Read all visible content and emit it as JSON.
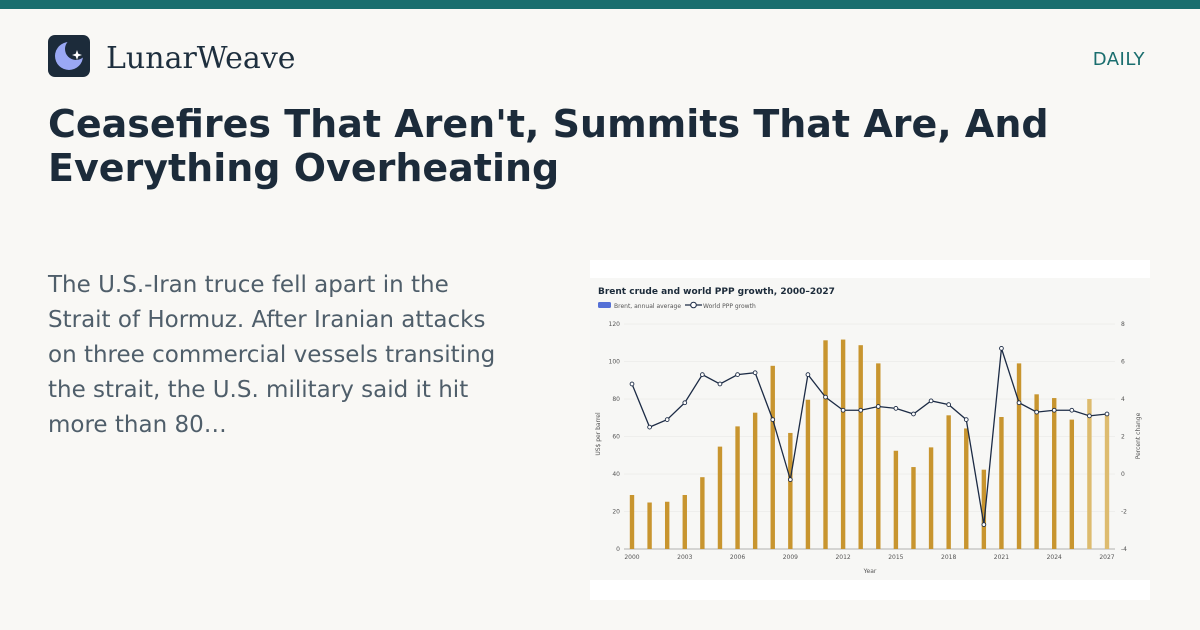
{
  "site": {
    "brand": "LunarWeave",
    "logo_icon": "crescent-moon-sparkle-icon",
    "section": "DAILY",
    "accent_color": "#1a6e6e"
  },
  "article": {
    "headline": "Ceasefires That Aren't, Summits That Are, And Everything Overheating",
    "excerpt": "The U.S.-Iran truce fell apart in the Strait of Hormuz. After Iranian attacks on three commercial vessels transiting the strait, the U.S. military said it hit more than 80…"
  },
  "chart_data": {
    "type": "bar",
    "title": "Brent crude and world PPP growth, 2000–2027",
    "xlabel": "Year",
    "ylabel": "US$ per barrel",
    "y2label": "Percent change",
    "ylim": [
      0,
      120
    ],
    "y2lim": [
      -4,
      8
    ],
    "yticks": [
      0,
      20,
      40,
      60,
      80,
      100,
      120
    ],
    "y2ticks": [
      -4,
      -2,
      0,
      2,
      4,
      6,
      8
    ],
    "xticks": [
      "2000",
      "2003",
      "2006",
      "2009",
      "2012",
      "2015",
      "2018",
      "2021",
      "2024",
      "2027"
    ],
    "grid": true,
    "legend_position": "top-left",
    "categories": [
      2000,
      2001,
      2002,
      2003,
      2004,
      2005,
      2006,
      2007,
      2008,
      2009,
      2010,
      2011,
      2012,
      2013,
      2014,
      2015,
      2016,
      2017,
      2018,
      2019,
      2020,
      2021,
      2022,
      2023,
      2024,
      2025,
      2026,
      2027
    ],
    "forecast_from": 2026,
    "series": [
      {
        "name": "Brent, annual average",
        "type": "bar",
        "axis": "left",
        "color": "#c8952f",
        "forecast_color": "#ddbb6e",
        "values": [
          28.8,
          24.8,
          25.2,
          28.8,
          38.3,
          54.6,
          65.4,
          72.7,
          97.7,
          61.9,
          79.6,
          111.3,
          111.7,
          108.7,
          99.0,
          52.4,
          43.7,
          54.2,
          71.3,
          64.3,
          42.3,
          70.4,
          99.0,
          82.5,
          80.5,
          69.0,
          80.0,
          72.0
        ]
      },
      {
        "name": "World PPP growth",
        "type": "line",
        "axis": "right",
        "color": "#1c2b45",
        "values": [
          4.8,
          2.5,
          2.9,
          3.8,
          5.3,
          4.8,
          5.3,
          5.4,
          2.9,
          -0.3,
          5.3,
          4.1,
          3.4,
          3.4,
          3.6,
          3.5,
          3.2,
          3.9,
          3.7,
          2.9,
          -2.7,
          6.7,
          3.8,
          3.3,
          3.4,
          3.4,
          3.1,
          3.2
        ]
      }
    ]
  }
}
